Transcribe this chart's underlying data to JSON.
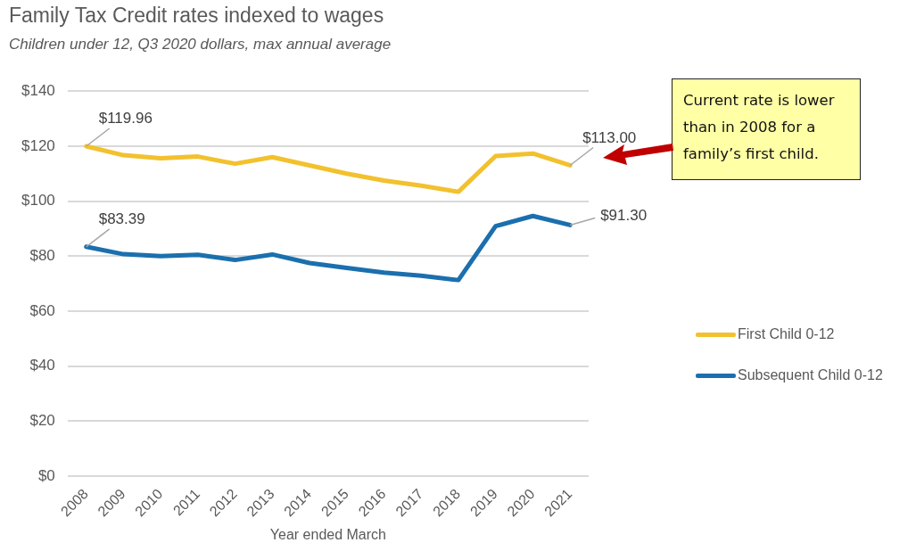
{
  "chart_data": {
    "type": "line",
    "title": "Family Tax Credit rates indexed to wages",
    "subtitle": "Children under 12, Q3 2020 dollars, max annual average",
    "xlabel": "Year ended March",
    "categories": [
      "2008",
      "2009",
      "2010",
      "2011",
      "2012",
      "2013",
      "2014",
      "2015",
      "2016",
      "2017",
      "2018",
      "2019",
      "2020",
      "2021"
    ],
    "series": [
      {
        "name": "First Child 0-12",
        "color": "#f2c12e",
        "values": [
          119.96,
          116.7,
          115.6,
          116.2,
          113.6,
          116,
          113,
          110,
          107.5,
          105.6,
          103.4,
          116.4,
          117.3,
          113.0
        ],
        "value_labels": [
          "$119.96",
          null,
          null,
          null,
          null,
          null,
          null,
          null,
          null,
          null,
          null,
          null,
          null,
          "$113.00"
        ]
      },
      {
        "name": "Subsequent Child 0-12",
        "color": "#1b6fae",
        "values": [
          83.39,
          80.7,
          80,
          80.5,
          78.6,
          80.6,
          77.5,
          75.7,
          74,
          72.9,
          71.3,
          90.9,
          94.6,
          91.3
        ],
        "value_labels": [
          "$83.39",
          null,
          null,
          null,
          null,
          null,
          null,
          null,
          null,
          null,
          null,
          null,
          null,
          "$91.30"
        ]
      }
    ],
    "ylim": [
      0,
      140
    ],
    "yticks": [
      {
        "value": 0,
        "label": "$0"
      },
      {
        "value": 20,
        "label": "$20"
      },
      {
        "value": 40,
        "label": "$40"
      },
      {
        "value": 60,
        "label": "$60"
      },
      {
        "value": 80,
        "label": "$80"
      },
      {
        "value": 100,
        "label": "$100"
      },
      {
        "value": 120,
        "label": "$120"
      },
      {
        "value": 140,
        "label": "$140"
      }
    ],
    "grid": "y",
    "legend": "right",
    "marker": "none",
    "line_style": "solid",
    "annotations": [
      "Current rate is lower than in 2008 for a family’s first child."
    ]
  }
}
